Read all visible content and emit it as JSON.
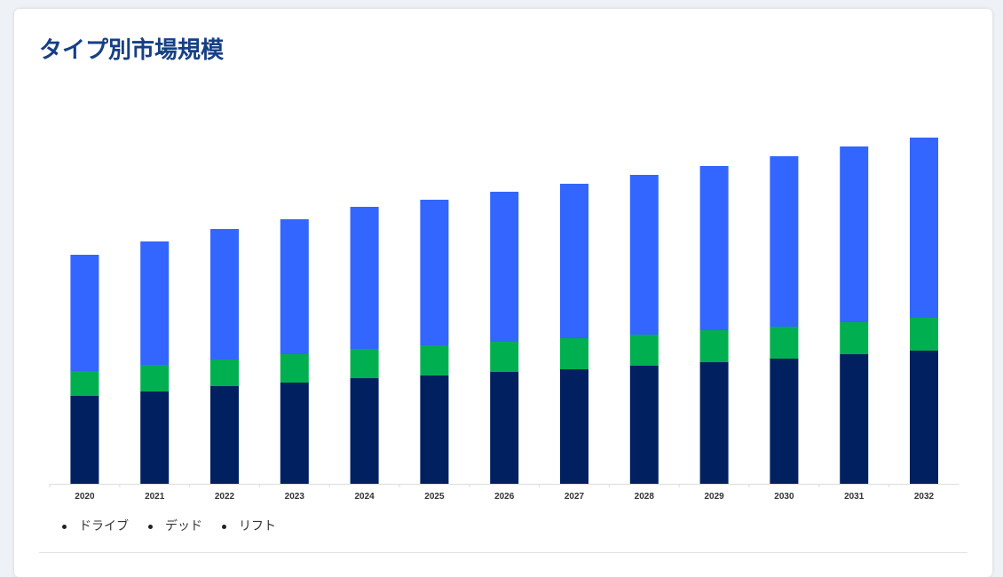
{
  "title": "タイプ別市場規模",
  "chart_data": {
    "type": "bar",
    "stacked": true,
    "title": "タイプ別市場規模",
    "xlabel": "",
    "ylabel": "",
    "categories": [
      "2020",
      "2021",
      "2022",
      "2023",
      "2024",
      "2025",
      "2026",
      "2027",
      "2028",
      "2029",
      "2030",
      "2031",
      "2032"
    ],
    "series": [
      {
        "name": "ドライブ",
        "color": "#002060",
        "values": [
          99,
          104,
          110,
          114,
          119,
          122,
          126,
          129,
          133,
          137,
          141,
          146,
          150
        ]
      },
      {
        "name": "デッド",
        "color": "#00b050",
        "values": [
          28,
          30,
          30,
          32,
          33,
          34,
          34,
          35,
          35,
          36,
          36,
          36,
          37
        ]
      },
      {
        "name": "リフト",
        "color": "#3366ff",
        "values": [
          131,
          139,
          147,
          152,
          160,
          164,
          169,
          174,
          180,
          185,
          192,
          198,
          203
        ]
      }
    ],
    "grid": false,
    "legend_position": "bottom-left"
  }
}
